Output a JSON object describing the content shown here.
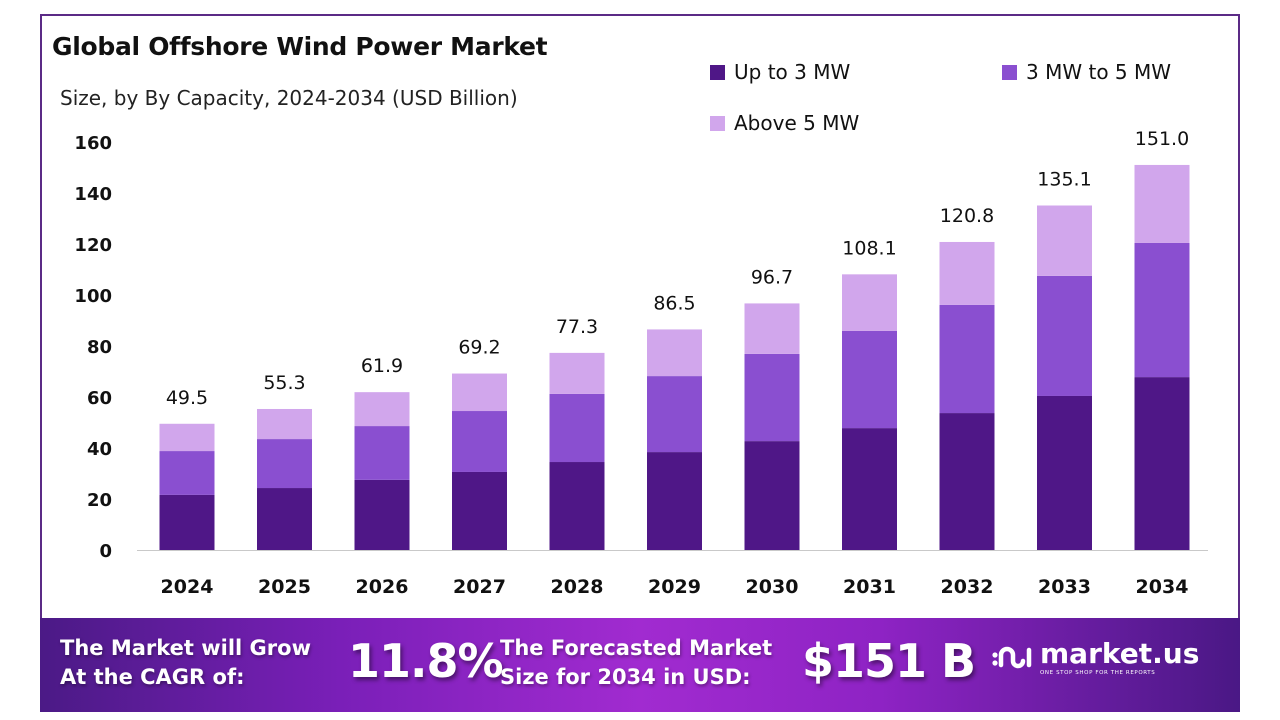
{
  "chart_data": {
    "type": "bar",
    "stacked": true,
    "title": "Global Offshore Wind Power Market",
    "subtitle": "Size, by By Capacity, 2024-2034 (USD Billion)",
    "xlabel": "",
    "ylabel": "",
    "ylim": [
      0,
      160
    ],
    "yticks": [
      0,
      20,
      40,
      60,
      80,
      100,
      120,
      140,
      160
    ],
    "grid": false,
    "legend_position": "top-right",
    "categories": [
      "2024",
      "2025",
      "2026",
      "2027",
      "2028",
      "2029",
      "2030",
      "2031",
      "2032",
      "2033",
      "2034"
    ],
    "series": [
      {
        "name": "Up to 3 MW",
        "color": "#4f1787",
        "values": [
          21.6,
          24.3,
          27.5,
          30.6,
          34.5,
          38.4,
          42.7,
          47.8,
          53.7,
          60.4,
          67.8
        ]
      },
      {
        "name": "3 MW to 5 MW",
        "color": "#8a4fd0",
        "values": [
          17.2,
          19.2,
          21.1,
          23.9,
          26.7,
          29.8,
          34.2,
          38.1,
          42.4,
          47.1,
          52.6
        ]
      },
      {
        "name": "Above 5 MW",
        "color": "#d1a6ec",
        "values": [
          10.7,
          11.8,
          13.3,
          14.7,
          16.1,
          18.3,
          19.8,
          22.2,
          24.7,
          27.6,
          30.6
        ]
      }
    ],
    "totals": [
      "49.5",
      "55.3",
      "61.9",
      "69.2",
      "77.3",
      "86.5",
      "96.7",
      "108.1",
      "120.8",
      "135.1",
      "151.0"
    ]
  },
  "banner": {
    "cagr_label_line1": "The Market will Grow",
    "cagr_label_line2": "At the CAGR of:",
    "cagr_value": "11.8%",
    "forecast_label_line1": "The Forecasted Market",
    "forecast_label_line2": "Size for 2034 in USD:",
    "forecast_value": "$151 B",
    "brand_name": "market.us",
    "brand_tagline": "ONE STOP SHOP FOR THE REPORTS"
  }
}
